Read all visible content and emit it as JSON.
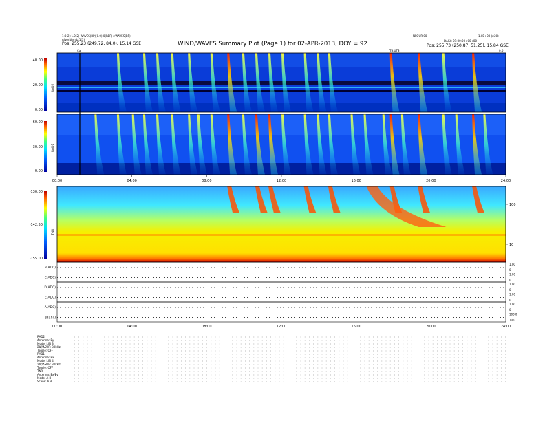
{
  "header": {
    "title": "WIND/WAVES Summary Plot (Page 1) for 02-APR-2013, DOY = 92",
    "left_lines": [
      "1:0(2):1.0(2) WAVES(BP)(0.0):0(REF)  r:WAVES(BP)",
      "Algorithm:b:1(3)",
      "Pos: 255.23 (249.72, 84.0), 15.14 GSE"
    ],
    "right_lines": [
      "NFOUR:00",
      "1.0E+00 (r:20)",
      "DAILY: 01:00:00+00+00",
      "Pos: 255.73 (250.87, 51.25), 15.84 GSE"
    ],
    "cal_label": "Cal",
    "tb_label": "TB:UTS",
    "dt_label": "0.0"
  },
  "colors": {
    "low": "#0000a0",
    "mid": "#00c8ff",
    "high": "#ff2000",
    "tnr_base": "#f0e000",
    "tnr_hot": "#ff3000"
  },
  "chart_data": [
    {
      "type": "heatmap",
      "name": "RAD2",
      "ylabel": "RAD2",
      "colorbar_ticks": [
        "40.00",
        "20.00",
        "0.00"
      ],
      "colorbar_range": [
        0,
        40
      ],
      "x_ticks": [
        "00:00",
        "04:00",
        "08:00",
        "12:00",
        "16:00",
        "20:00",
        "24:00"
      ],
      "burst_hours": [
        3.2,
        4.6,
        5.3,
        6.1,
        7.0,
        8.2,
        9.1,
        9.9,
        10.6,
        11.3,
        12.0,
        13.2,
        13.9,
        14.5,
        17.8,
        19.3,
        20.6,
        22.2
      ],
      "intense_hours": [
        9.1,
        17.8,
        19.3,
        22.2
      ]
    },
    {
      "type": "heatmap",
      "name": "RAD1",
      "ylabel": "RAD1",
      "colorbar_ticks": [
        "60.00",
        "30.00",
        "0.00"
      ],
      "colorbar_range": [
        0,
        60
      ],
      "x_ticks": [
        "00:00",
        "04:00",
        "08:00",
        "12:00",
        "16:00",
        "20:00",
        "24:00"
      ],
      "burst_hours": [
        2.0,
        3.2,
        4.0,
        4.6,
        5.3,
        6.1,
        7.0,
        7.5,
        8.2,
        9.1,
        9.9,
        10.6,
        11.3,
        12.0,
        13.2,
        13.9,
        14.5,
        15.7,
        16.4,
        17.4,
        17.8,
        18.4,
        19.3,
        20.6,
        21.3,
        22.2,
        22.8
      ],
      "intense_hours": [
        9.1,
        10.6,
        11.3,
        17.8,
        19.3,
        22.2
      ]
    },
    {
      "type": "heatmap",
      "name": "TNR",
      "ylabel": "TNR",
      "colorbar_ticks": [
        "-130.00",
        "-142.50",
        "-155.00"
      ],
      "colorbar_range": [
        -155,
        -130
      ],
      "right_ticks": [
        "100",
        "10"
      ],
      "right_label": "",
      "burst_hours": [
        9.1,
        10.6,
        11.3,
        13.2,
        14.5,
        17.8,
        19.3,
        22.2
      ],
      "type3_start_hour": 16.4
    },
    {
      "type": "line",
      "name": "housekeeping",
      "rows": [
        {
          "label": "B(ADC)",
          "ticks": [
            "1.00",
            "0"
          ]
        },
        {
          "label": "C(ADC)",
          "ticks": [
            "1.00",
            "0"
          ]
        },
        {
          "label": "D(ADC)",
          "ticks": [
            "1.00",
            "0"
          ]
        },
        {
          "label": "E(ADC)",
          "ticks": [
            "1.00",
            "0"
          ]
        },
        {
          "label": "A(ADC)",
          "ticks": [
            "1.00",
            "0"
          ]
        },
        {
          "label": "|B|(nT)",
          "ticks": [
            "100.0",
            "10.0"
          ]
        }
      ],
      "x_ticks": [
        "00:00",
        "04:00",
        "08:00",
        "12:00",
        "16:00",
        "20:00",
        "24:00"
      ]
    }
  ],
  "footer": {
    "blocks": [
      {
        "title": "RAD2",
        "lines": [
          "Antenna: Ey",
          "Mode: LIN 3",
          "ΣΔf/ΔSUP: 30kHz",
          "Toggle: OFF"
        ]
      },
      {
        "title": "RAD1",
        "lines": [
          "Antenna: Ex",
          "Mode: LIN 4",
          "ΣΔf/ΔSUP: 30kHz",
          "Toggle: OFF"
        ]
      },
      {
        "title": "TNR",
        "lines": [
          "Antenna: Ex/Ey",
          "Mode: A B",
          "Scans: A B"
        ]
      }
    ]
  }
}
